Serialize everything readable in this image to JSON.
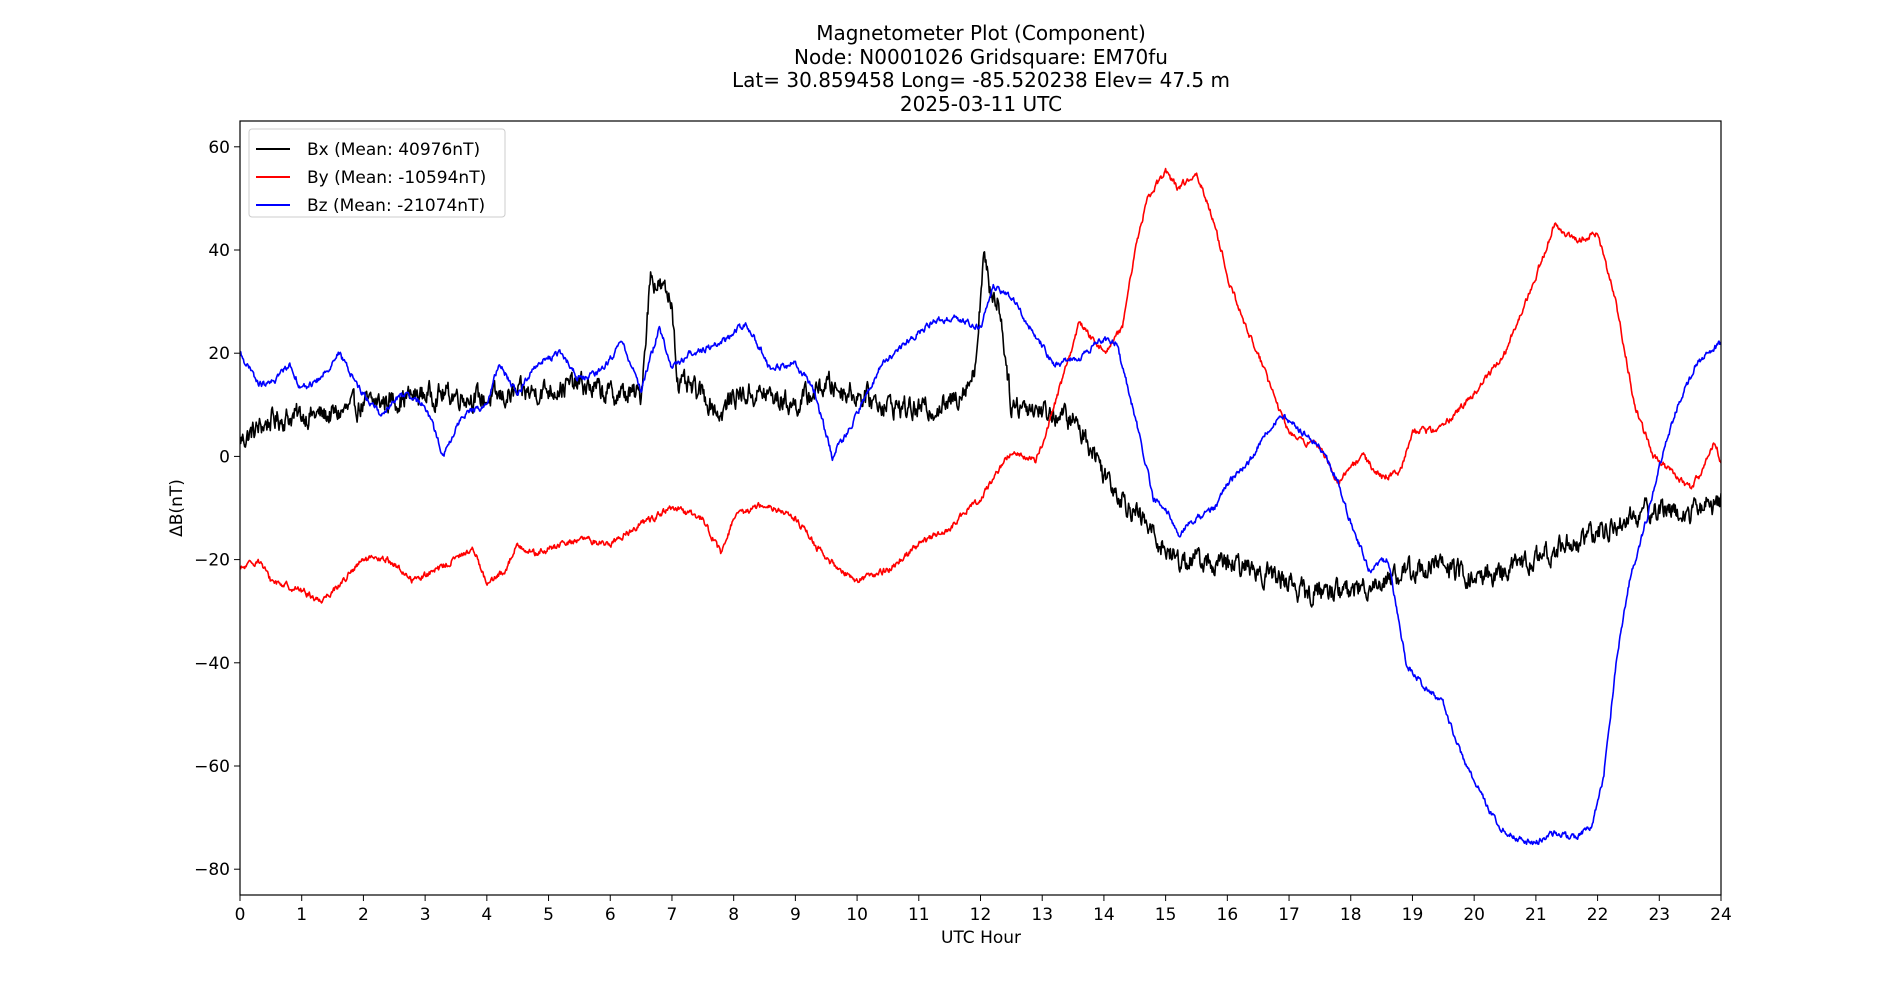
{
  "chart_data": {
    "type": "line",
    "title_lines": [
      "Magnetometer Plot (Component)",
      "Node:  N0001026     Gridsquare:  EM70fu",
      "Lat= 30.859458    Long= -85.520238    Elev= 47.5 m",
      "2025-03-11  UTC"
    ],
    "xlabel": "UTC Hour",
    "ylabel": "ΔB(nT)",
    "xlim": [
      0,
      24
    ],
    "ylim": [
      -85,
      65
    ],
    "xticks": [
      0,
      1,
      2,
      3,
      4,
      5,
      6,
      7,
      8,
      9,
      10,
      11,
      12,
      13,
      14,
      15,
      16,
      17,
      18,
      19,
      20,
      21,
      22,
      23,
      24
    ],
    "xtick_labels": [
      "0",
      "1",
      "2",
      "3",
      "4",
      "5",
      "6",
      "7",
      "8",
      "9",
      "10",
      "11",
      "12",
      "13",
      "14",
      "15",
      "16",
      "17",
      "18",
      "19",
      "20",
      "21",
      "22",
      "23",
      "24"
    ],
    "yticks": [
      60,
      40,
      20,
      0,
      -20,
      -40,
      -60,
      -80
    ],
    "ytick_labels": [
      "60",
      "40",
      "20",
      "0",
      "−20",
      "−40",
      "−60",
      "−80"
    ],
    "grid": false,
    "legend_position": "top-left",
    "series": [
      {
        "name": "Bx (Mean: 40976nT)",
        "color": "#000000",
        "noise_amplitude": 3.5,
        "x": [
          0,
          0.5,
          1,
          1.5,
          2,
          2.5,
          3,
          3.5,
          4,
          4.5,
          5,
          5.5,
          6,
          6.5,
          6.65,
          6.8,
          7,
          7.1,
          7.5,
          7.8,
          8,
          8.5,
          9,
          9.5,
          10,
          10.5,
          11,
          11.5,
          11.9,
          12.05,
          12.15,
          12.3,
          12.5,
          12.7,
          13,
          13.5,
          13.8,
          14,
          14.3,
          14.6,
          14.8,
          15,
          15.2,
          15.5,
          15.8,
          16,
          16.5,
          17,
          17.3,
          17.5,
          18,
          18.5,
          19,
          19.5,
          20,
          20.5,
          21,
          21.5,
          22,
          22.5,
          23,
          23.5,
          24
        ],
        "y": [
          3,
          7,
          8,
          8,
          10,
          11,
          12,
          12,
          11,
          12,
          13,
          14,
          12,
          12,
          35,
          33,
          30,
          14,
          12,
          8,
          12,
          12,
          10,
          14,
          12,
          10,
          9,
          10,
          16,
          39,
          32,
          30,
          10,
          10,
          9,
          7,
          2,
          -3,
          -8,
          -12,
          -15,
          -18,
          -20,
          -20,
          -21,
          -21,
          -22,
          -24,
          -27,
          -26,
          -26,
          -24,
          -22,
          -21,
          -24,
          -22,
          -20,
          -17,
          -15,
          -12,
          -10,
          -11,
          -8
        ]
      },
      {
        "name": "By (Mean: -10594nT)",
        "color": "#ff0000",
        "noise_amplitude": 1.0,
        "x": [
          0,
          0.3,
          0.5,
          1,
          1.3,
          1.6,
          2,
          2.4,
          2.8,
          3.2,
          3.6,
          3.8,
          4,
          4.3,
          4.5,
          4.8,
          5,
          5.5,
          6,
          6.5,
          7,
          7.5,
          7.8,
          8,
          8.3,
          8.5,
          9,
          9.5,
          10,
          10.5,
          11,
          11.5,
          12,
          12.5,
          12.9,
          13.2,
          13.6,
          14,
          14.3,
          14.5,
          14.7,
          15,
          15.2,
          15.5,
          15.8,
          16,
          16.3,
          16.5,
          16.8,
          17,
          17.2,
          17.5,
          17.8,
          18,
          18.2,
          18.5,
          18.8,
          19,
          19.3,
          19.5,
          20,
          20.5,
          21,
          21.3,
          21.6,
          22,
          22.3,
          22.6,
          22.9,
          23.2,
          23.5,
          23.7,
          23.9,
          24
        ],
        "y": [
          -22,
          -20,
          -24,
          -26,
          -28,
          -25,
          -20,
          -20,
          -24,
          -22,
          -19,
          -18,
          -25,
          -22,
          -17,
          -19,
          -18,
          -16,
          -17,
          -13,
          -10,
          -12,
          -19,
          -12,
          -10,
          -9,
          -12,
          -20,
          -24,
          -22,
          -17,
          -14,
          -8,
          1,
          -1,
          10,
          26,
          20,
          25,
          40,
          50,
          55,
          52,
          55,
          45,
          35,
          25,
          20,
          10,
          5,
          3,
          2,
          -5,
          -2,
          0,
          -4,
          -3,
          5,
          5,
          6,
          12,
          20,
          35,
          45,
          42,
          43,
          30,
          10,
          0,
          -3,
          -6,
          -3,
          3,
          -1
        ]
      },
      {
        "name": "Bz (Mean: -21074nT)",
        "color": "#0000ff",
        "noise_amplitude": 1.0,
        "x": [
          0,
          0.3,
          0.5,
          0.8,
          1,
          1.3,
          1.6,
          2,
          2.3,
          2.6,
          3,
          3.3,
          3.6,
          4,
          4.2,
          4.5,
          4.8,
          5.2,
          5.5,
          5.8,
          6.2,
          6.5,
          6.8,
          7,
          7.3,
          7.8,
          8.2,
          8.6,
          9,
          9.3,
          9.6,
          10,
          10.4,
          10.8,
          11.2,
          11.6,
          12,
          12.2,
          12.5,
          12.8,
          13.2,
          13.6,
          14,
          14.2,
          14.5,
          14.8,
          15,
          15.2,
          15.5,
          15.8,
          16,
          16.3,
          16.6,
          16.9,
          17.2,
          17.5,
          17.8,
          18,
          18.3,
          18.6,
          18.9,
          19.2,
          19.5,
          19.8,
          20.1,
          20.4,
          20.7,
          21,
          21.3,
          21.6,
          21.9,
          22.1,
          22.3,
          22.5,
          22.8,
          23,
          23.3,
          23.6,
          23.9,
          24
        ],
        "y": [
          20,
          14,
          14,
          18,
          13,
          15,
          20,
          12,
          8,
          12,
          10,
          0,
          8,
          10,
          18,
          12,
          18,
          20,
          15,
          16,
          22,
          13,
          25,
          17,
          20,
          22,
          26,
          17,
          18,
          13,
          0,
          8,
          18,
          22,
          26,
          27,
          25,
          33,
          31,
          25,
          18,
          19,
          23,
          22,
          8,
          -8,
          -10,
          -15,
          -12,
          -10,
          -5,
          -2,
          4,
          8,
          5,
          2,
          -5,
          -13,
          -22,
          -20,
          -40,
          -45,
          -48,
          -58,
          -65,
          -72,
          -74,
          -75,
          -73,
          -74,
          -72,
          -62,
          -40,
          -25,
          -12,
          -2,
          10,
          18,
          21,
          22
        ]
      }
    ]
  }
}
